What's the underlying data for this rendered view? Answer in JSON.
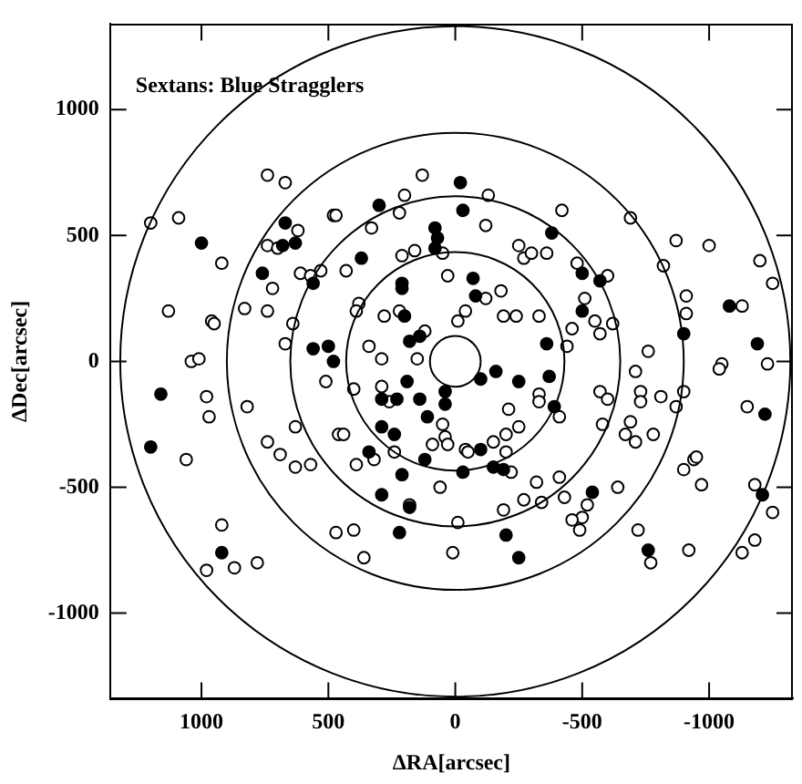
{
  "chart_data": {
    "type": "scatter",
    "title": "Sextans: Blue Stragglers",
    "xlabel": "ΔRA[arcsec]",
    "ylabel": "ΔDec[arcsec]",
    "xlim": [
      1360,
      -1330
    ],
    "ylim": [
      -1340,
      1340
    ],
    "xticks": [
      1000,
      500,
      0,
      -500,
      -1000
    ],
    "yticks": [
      -1000,
      -500,
      0,
      500,
      1000
    ],
    "grid": false,
    "legend": false,
    "marker": "circle",
    "series": [
      {
        "color": "#000000",
        "x": [
          1000,
          670,
          680,
          630,
          760,
          560,
          560,
          500,
          480,
          -20,
          300,
          -30,
          80,
          70,
          80,
          -380,
          370,
          -70,
          210,
          210,
          200,
          180,
          140,
          -80,
          -360,
          -500,
          -570,
          -500,
          -900,
          -1080,
          -1190,
          1160,
          1200,
          920,
          190,
          40,
          40,
          140,
          230,
          290,
          110,
          290,
          240,
          340,
          120,
          210,
          290,
          180,
          220,
          -30,
          -100,
          -150,
          -190,
          -100,
          -160,
          -250,
          -370,
          -390,
          -200,
          -250,
          -540,
          -1220,
          -1210,
          -760
        ],
        "values": [
          470,
          550,
          460,
          470,
          350,
          310,
          50,
          60,
          0,
          710,
          620,
          600,
          530,
          490,
          450,
          510,
          410,
          330,
          310,
          290,
          180,
          80,
          100,
          260,
          70,
          350,
          320,
          200,
          110,
          220,
          70,
          -130,
          -340,
          -760,
          -80,
          -120,
          -170,
          -150,
          -150,
          -150,
          -220,
          -260,
          -290,
          -360,
          -390,
          -450,
          -530,
          -580,
          -680,
          -440,
          -350,
          -420,
          -430,
          -70,
          -40,
          -80,
          -60,
          -180,
          -690,
          -780,
          -520,
          -210,
          -530,
          -750
        ]
      },
      {
        "color": "#ffffff",
        "x": [
          740,
          670,
          1200,
          1090,
          920,
          620,
          740,
          700,
          720,
          830,
          740,
          1130,
          960,
          950,
          610,
          570,
          530,
          480,
          670,
          640,
          1040,
          1010,
          130,
          200,
          220,
          -130,
          -420,
          470,
          330,
          -120,
          430,
          210,
          160,
          50,
          -250,
          -270,
          -300,
          -360,
          30,
          -180,
          -120,
          -40,
          -10,
          -190,
          -240,
          -330,
          380,
          390,
          280,
          220,
          120,
          340,
          290,
          150,
          -690,
          -870,
          -1000,
          -1200,
          -1250,
          -480,
          -600,
          -820,
          -510,
          -910,
          -910,
          -1130,
          -550,
          -620,
          -570,
          -460,
          -440,
          -760,
          -1050,
          -1230,
          980,
          970,
          820,
          510,
          630,
          740,
          690,
          630,
          570,
          1060,
          920,
          980,
          870,
          780,
          470,
          460,
          400,
          290,
          260,
          440,
          50,
          40,
          90,
          30,
          240,
          320,
          390,
          -40,
          -50,
          -150,
          -200,
          -200,
          -250,
          -210,
          -330,
          -330,
          -410,
          -220,
          60,
          180,
          -10,
          -190,
          -270,
          -320,
          -340,
          -410,
          400,
          360,
          10,
          -710,
          -570,
          -600,
          -730,
          -730,
          -810,
          -870,
          -900,
          -580,
          -690,
          -670,
          -710,
          -780,
          -1040,
          -1150,
          -940,
          -950,
          -900,
          -970,
          -1180,
          -1250,
          -430,
          -640,
          -520,
          -500,
          -460,
          -490,
          -720,
          -920,
          -770,
          -1180,
          -1130
        ],
        "values": [
          740,
          710,
          550,
          570,
          390,
          520,
          460,
          450,
          290,
          210,
          200,
          200,
          160,
          150,
          350,
          340,
          360,
          580,
          70,
          150,
          0,
          10,
          740,
          660,
          590,
          660,
          600,
          580,
          530,
          540,
          360,
          420,
          440,
          430,
          460,
          410,
          430,
          430,
          340,
          280,
          250,
          200,
          160,
          180,
          180,
          180,
          230,
          200,
          180,
          200,
          120,
          60,
          10,
          10,
          570,
          480,
          460,
          400,
          310,
          390,
          340,
          380,
          250,
          260,
          190,
          220,
          160,
          150,
          110,
          130,
          60,
          40,
          -10,
          -10,
          -140,
          -220,
          -180,
          -80,
          -260,
          -320,
          -370,
          -420,
          -410,
          -390,
          -650,
          -830,
          -820,
          -800,
          -680,
          -290,
          -110,
          -100,
          -160,
          -290,
          -250,
          -300,
          -330,
          -330,
          -360,
          -390,
          -410,
          -350,
          -360,
          -320,
          -360,
          -290,
          -260,
          -190,
          -130,
          -160,
          -220,
          -440,
          -500,
          -570,
          -640,
          -590,
          -550,
          -480,
          -560,
          -460,
          -670,
          -780,
          -760,
          -40,
          -120,
          -150,
          -120,
          -160,
          -140,
          -180,
          -120,
          -250,
          -240,
          -290,
          -320,
          -290,
          -30,
          -180,
          -390,
          -380,
          -430,
          -490,
          -490,
          -600,
          -540,
          -500,
          -570,
          -620,
          -630,
          -670,
          -670,
          -750,
          -800,
          -710,
          -760
        ]
      }
    ]
  }
}
